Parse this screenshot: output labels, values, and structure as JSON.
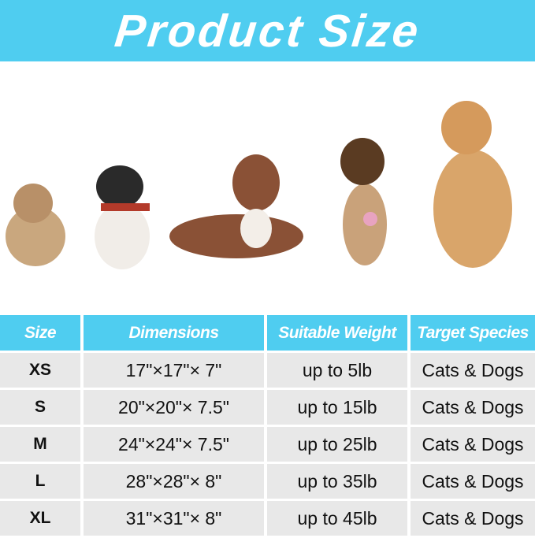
{
  "title": "Product Size",
  "colors": {
    "accent": "#4fcdf0",
    "cell": "#e8e8e8"
  },
  "table": {
    "headers": [
      "Size",
      "Dimensions",
      "Suitable Weight",
      "Target Species"
    ],
    "rows": [
      [
        "XS",
        "17\"×17\"× 7\"",
        "up to 5lb",
        "Cats & Dogs"
      ],
      [
        "S",
        "20\"×20\"× 7.5\"",
        "up to 15lb",
        "Cats & Dogs"
      ],
      [
        "M",
        "24\"×24\"× 7.5\"",
        "up to 25lb",
        "Cats & Dogs"
      ],
      [
        "L",
        "28\"×28\"× 8\"",
        "up to 35lb",
        "Cats & Dogs"
      ],
      [
        "XL",
        "31\"×31\"× 8\"",
        "up to 45lb",
        "Cats & Dogs"
      ]
    ]
  }
}
